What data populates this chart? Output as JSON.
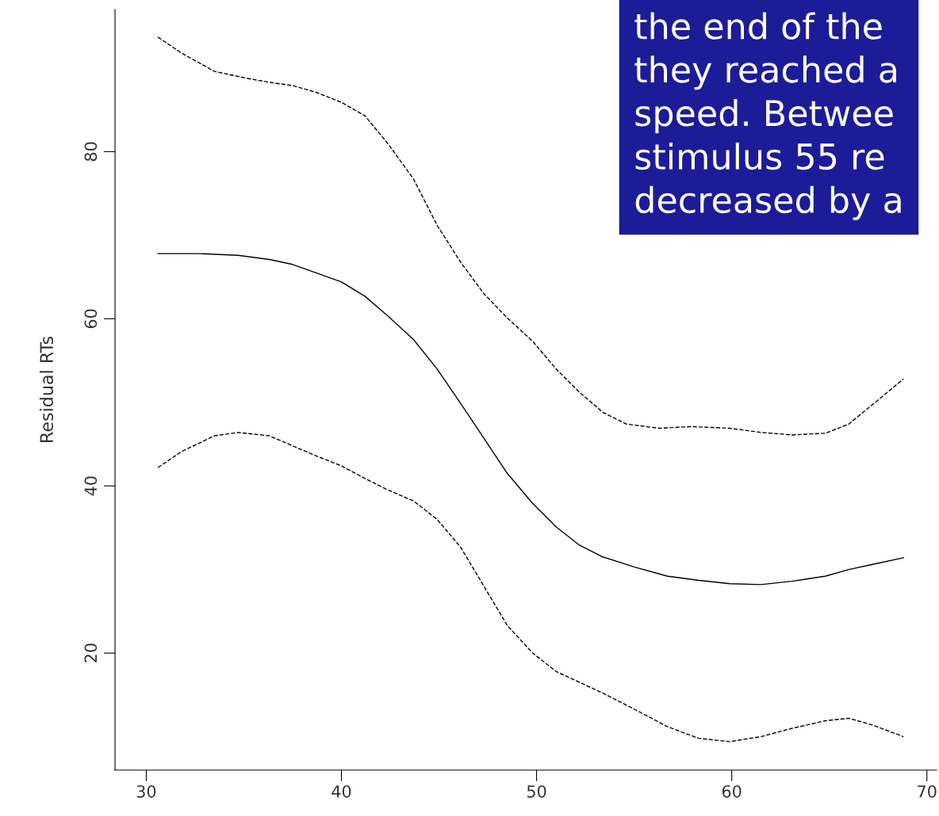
{
  "chart_data": {
    "type": "line",
    "ylabel": "Residual RTs",
    "xlim": [
      28.4,
      70.5
    ],
    "ylim": [
      6,
      97
    ],
    "xticks": [
      30,
      40,
      50,
      60,
      70
    ],
    "yticks": [
      20,
      40,
      60,
      80
    ],
    "grid": false,
    "legend": false,
    "marker": "none",
    "series": [
      {
        "color": "#000000",
        "line_style": "dashed",
        "x": [
          30.6,
          31.8,
          33.5,
          35.1,
          36.3,
          37.5,
          38.7,
          40,
          41.2,
          42.4,
          43.7,
          44.9,
          46.1,
          47.3,
          48.5,
          49.8,
          51,
          52.2,
          53.4,
          54.6,
          56.3,
          57.9,
          59.9,
          61.5,
          63.1,
          64.8,
          66,
          67.2,
          68.8
        ],
        "values": [
          93.7,
          91.8,
          89.6,
          88.8,
          88.3,
          87.9,
          87.1,
          85.9,
          84.3,
          80.9,
          76.7,
          71.2,
          66.8,
          63.0,
          60.1,
          57.3,
          54.0,
          51.2,
          48.8,
          47.4,
          46.9,
          47.1,
          46.9,
          46.4,
          46.1,
          46.3,
          47.4,
          49.7,
          52.8
        ]
      },
      {
        "color": "#000000",
        "line_style": "solid",
        "x": [
          30.6,
          32.6,
          34.7,
          36.3,
          37.5,
          38.7,
          40,
          41.2,
          42.4,
          43.7,
          44.9,
          46.1,
          47.3,
          48.5,
          49.8,
          51,
          52.2,
          53.4,
          55,
          56.7,
          58.3,
          59.9,
          61.5,
          63.1,
          64.8,
          66,
          67.2,
          68.8
        ],
        "values": [
          67.8,
          67.8,
          67.6,
          67.1,
          66.5,
          65.5,
          64.4,
          62.7,
          60.3,
          57.5,
          54.0,
          49.9,
          45.7,
          41.5,
          37.9,
          35.1,
          32.9,
          31.5,
          30.3,
          29.2,
          28.7,
          28.3,
          28.2,
          28.6,
          29.2,
          30.0,
          30.6,
          31.4
        ]
      },
      {
        "color": "#000000",
        "line_style": "dashed",
        "x": [
          30.6,
          31.8,
          33.5,
          34.7,
          36.3,
          37.5,
          38.7,
          40,
          41.2,
          42.4,
          43.7,
          44.9,
          46.1,
          47.3,
          48.5,
          49.8,
          51,
          52.2,
          53.4,
          55,
          56.7,
          58.3,
          59.9,
          61.5,
          63.1,
          64.8,
          66,
          67.2,
          68.8
        ],
        "values": [
          42.2,
          44.1,
          46.0,
          46.4,
          46.0,
          44.8,
          43.6,
          42.4,
          40.9,
          39.5,
          38.2,
          36.0,
          32.7,
          28.0,
          23.3,
          20.0,
          17.8,
          16.5,
          15.2,
          13.3,
          11.2,
          9.8,
          9.4,
          10.0,
          11.0,
          11.9,
          12.2,
          11.4,
          10.0
        ]
      }
    ],
    "annotations": [
      "the end of the\nthey reached a\nspeed. Betwee\nstimulus 55 re\ndecreased by a"
    ]
  }
}
